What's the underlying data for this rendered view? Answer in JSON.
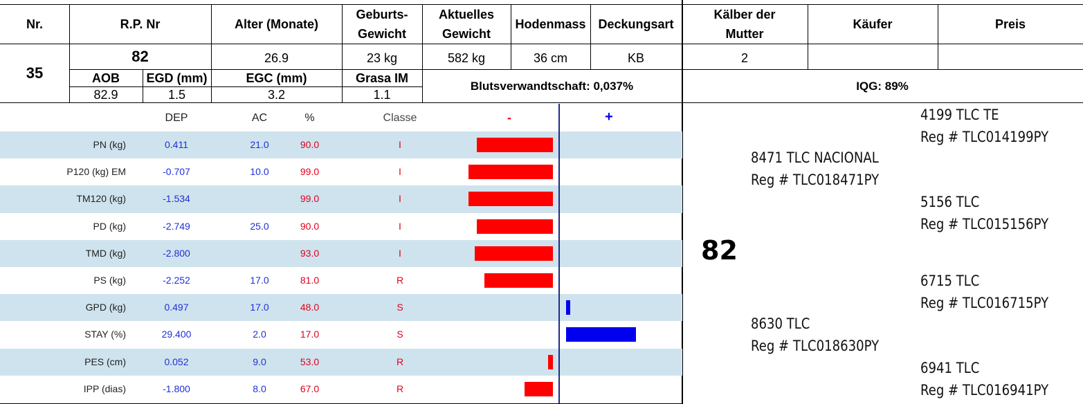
{
  "header": {
    "nr": "Nr.",
    "rp_nr": "R.P. Nr",
    "alter": "Alter (Monate)",
    "geburts_l1": "Geburts-",
    "geburts_l2": "Gewicht",
    "aktuelles_l1": "Aktuelles",
    "aktuelles_l2": "Gewicht",
    "hodenmass": "Hodenmass",
    "deckungsart": "Deckungsart",
    "kaelber_l1": "Kälber der",
    "kaelber_l2": "Mutter",
    "kaeufer": "Käufer",
    "preis": "Preis"
  },
  "animal": {
    "nr": "35",
    "rp_nr": "82",
    "alter": "26.9",
    "geburts_gewicht": "23 kg",
    "aktuelles_gewicht": "582 kg",
    "hodenmass": "36 cm",
    "deckungsart": "KB",
    "kaelber": "2",
    "kaeufer": "",
    "preis": ""
  },
  "sub": {
    "aob_label": "AOB",
    "egd_label": "EGD (mm)",
    "egc_label": "EGC (mm)",
    "grasa_label": "Grasa IM",
    "aob": "82.9",
    "egd": "1.5",
    "egc": "3.2",
    "grasa": "1.1",
    "blut": "Blutsverwandtschaft: 0,037%",
    "iqg": "IQG: 89%"
  },
  "epd": {
    "columns": {
      "dep": "DEP",
      "ac": "AC",
      "pct": "%",
      "classe": "Classe",
      "minus": "-",
      "plus": "+"
    },
    "rows": [
      {
        "name": "PN (kg)",
        "dep": "0.411",
        "ac": "21.0",
        "pct": "90.0",
        "cls": "I",
        "bar": -0.9
      },
      {
        "name": "P120 (kg) EM",
        "dep": "-0.707",
        "ac": "10.0",
        "pct": "99.0",
        "cls": "I",
        "bar": -1.0
      },
      {
        "name": "TM120 (kg)",
        "dep": "-1.534",
        "ac": "",
        "pct": "99.0",
        "cls": "I",
        "bar": -1.0
      },
      {
        "name": "PD (kg)",
        "dep": "-2.749",
        "ac": "25.0",
        "pct": "90.0",
        "cls": "I",
        "bar": -0.9
      },
      {
        "name": "TMD (kg)",
        "dep": "-2.800",
        "ac": "",
        "pct": "93.0",
        "cls": "I",
        "bar": -0.93
      },
      {
        "name": "PS (kg)",
        "dep": "-2.252",
        "ac": "17.0",
        "pct": "81.0",
        "cls": "R",
        "bar": -0.81
      },
      {
        "name": "GPD (kg)",
        "dep": "0.497",
        "ac": "17.0",
        "pct": "48.0",
        "cls": "S",
        "bar": 0.05
      },
      {
        "name": "STAY (%)",
        "dep": "29.400",
        "ac": "2.0",
        "pct": "17.0",
        "cls": "S",
        "bar": 0.83
      },
      {
        "name": "PES (cm)",
        "dep": "0.052",
        "ac": "9.0",
        "pct": "53.0",
        "cls": "R",
        "bar": -0.06
      },
      {
        "name": "IPP (dias)",
        "dep": "-1.800",
        "ac": "8.0",
        "pct": "67.0",
        "cls": "R",
        "bar": -0.34
      }
    ],
    "colors": {
      "stripe": "#cfe3ee",
      "neg": "#ff0000",
      "pos": "#0000ee",
      "axis": "#1f2a8a"
    }
  },
  "pedigree": {
    "animal": "82",
    "sire": {
      "name": "8471 TLC NACIONAL",
      "reg": "Reg # TLC018471PY"
    },
    "dam": {
      "name": "8630 TLC",
      "reg": "Reg # TLC018630PY"
    },
    "ss": {
      "name": "4199 TLC TE",
      "reg": "Reg # TLC014199PY"
    },
    "sd": {
      "name": "5156 TLC",
      "reg": "Reg # TLC015156PY"
    },
    "ds": {
      "name": "6715 TLC",
      "reg": "Reg # TLC016715PY"
    },
    "dd": {
      "name": "6941 TLC",
      "reg": "Reg # TLC016941PY"
    }
  }
}
